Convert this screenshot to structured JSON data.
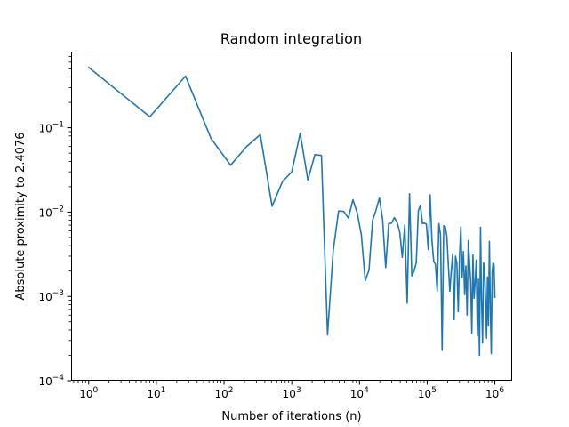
{
  "chart_data": {
    "type": "line",
    "title": "Random integration",
    "xlabel": "Number of iterations (n)",
    "ylabel": "Absolute proximity to 2.4076",
    "xscale": "log",
    "yscale": "log",
    "xlim": [
      0.55,
      1800000
    ],
    "ylim": [
      0.0001,
      0.8
    ],
    "grid": false,
    "x_ticks": [
      {
        "base": "10",
        "exp": "0",
        "value": 1
      },
      {
        "base": "10",
        "exp": "1",
        "value": 10
      },
      {
        "base": "10",
        "exp": "2",
        "value": 100
      },
      {
        "base": "10",
        "exp": "3",
        "value": 1000
      },
      {
        "base": "10",
        "exp": "4",
        "value": 10000
      },
      {
        "base": "10",
        "exp": "5",
        "value": 100000
      },
      {
        "base": "10",
        "exp": "6",
        "value": 1000000
      }
    ],
    "y_ticks": [
      {
        "base": "10",
        "exp": "−4",
        "value": 0.0001
      },
      {
        "base": "10",
        "exp": "−3",
        "value": 0.001
      },
      {
        "base": "10",
        "exp": "−2",
        "value": 0.01
      },
      {
        "base": "10",
        "exp": "−1",
        "value": 0.1
      }
    ],
    "series": [
      {
        "color": "#1f77b4",
        "x": [
          1,
          8,
          27,
          64,
          125,
          216,
          343,
          512,
          729,
          1000,
          1331,
          1728,
          2197,
          2744,
          3375,
          4096,
          4913,
          5832,
          6859,
          8000,
          9261,
          10648,
          12167,
          13824,
          15625,
          17576,
          19683,
          21952,
          24389,
          27000,
          29791,
          32768,
          35937,
          39304,
          42875,
          46656,
          50653,
          54872,
          59319,
          64000,
          68921,
          74088,
          79507,
          85184,
          91125,
          97336,
          103823,
          110592,
          117649,
          125000,
          132651,
          140608,
          148877,
          157464,
          166375,
          175616,
          185193,
          195112,
          205379,
          216000,
          226981,
          238328,
          250047,
          262144,
          274625,
          287496,
          300763,
          314432,
          328509,
          343000,
          357911,
          373248,
          389017,
          405224,
          421875,
          438976,
          456533,
          474552,
          493039,
          512000,
          531441,
          551368,
          571787,
          592704,
          614125,
          636056,
          658503,
          681472,
          704969,
          729000,
          753571,
          778688,
          804357,
          830584,
          857375,
          884736,
          912673,
          941192,
          970299,
          1000000
        ],
        "y": [
          0.52,
          0.135,
          0.41,
          0.075,
          0.036,
          0.06,
          0.083,
          0.0117,
          0.023,
          0.03,
          0.086,
          0.024,
          0.048,
          0.047,
          0.00035,
          0.0035,
          0.0103,
          0.0102,
          0.0085,
          0.014,
          0.0098,
          0.0054,
          0.00154,
          0.00205,
          0.008,
          0.0106,
          0.0147,
          0.0082,
          0.0022,
          0.0073,
          0.0074,
          0.0086,
          0.0076,
          0.0058,
          0.0029,
          0.007,
          0.00083,
          0.0165,
          0.00175,
          0.002,
          0.0025,
          0.0104,
          0.012,
          0.0073,
          0.0074,
          0.0072,
          0.0036,
          0.016,
          0.0046,
          0.0026,
          0.0024,
          0.00115,
          0.0073,
          0.0054,
          0.00023,
          0.0069,
          0.0067,
          0.0052,
          0.0024,
          0.00115,
          0.002,
          0.0032,
          0.00053,
          0.003,
          0.0025,
          0.00066,
          0.003,
          0.0067,
          0.0017,
          0.0034,
          0.00105,
          0.0023,
          0.0006,
          0.0046,
          0.0026,
          0.0015,
          0.00036,
          0.0031,
          0.00095,
          0.0015,
          0.0027,
          0.00034,
          0.0016,
          0.0002,
          0.0066,
          0.0009,
          0.00028,
          0.0025,
          0.0021,
          0.00093,
          0.00032,
          0.0017,
          0.00045,
          0.0045,
          0.00075,
          0.00021,
          0.0019,
          0.0025,
          0.0024,
          0.00098
        ]
      }
    ]
  }
}
